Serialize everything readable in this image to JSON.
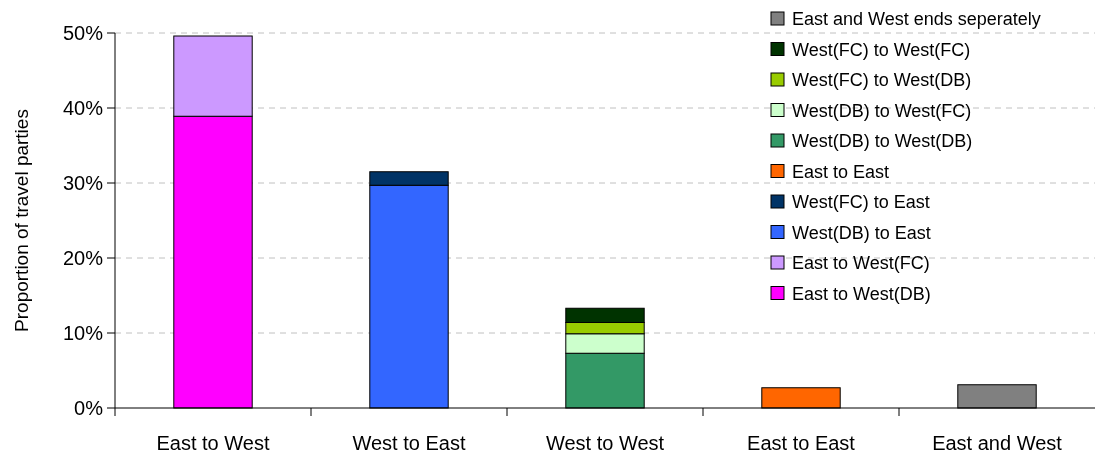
{
  "chart_data": {
    "type": "bar",
    "stacked": true,
    "ylabel": "Proportion of travel parties",
    "categories": [
      "East to West",
      "West to East",
      "West to West",
      "East to East",
      "East and West"
    ],
    "series": [
      {
        "name": "East to West(DB)",
        "color": "#ff00ff",
        "values": [
          38.9,
          null,
          null,
          null,
          null
        ]
      },
      {
        "name": "East to West(FC)",
        "color": "#cc99ff",
        "values": [
          10.7,
          null,
          null,
          null,
          null
        ]
      },
      {
        "name": "West(DB) to East",
        "color": "#3366ff",
        "values": [
          null,
          29.7,
          null,
          null,
          null
        ]
      },
      {
        "name": "West(FC) to East",
        "color": "#003366",
        "values": [
          null,
          1.8,
          null,
          null,
          null
        ]
      },
      {
        "name": "East to East",
        "color": "#ff6600",
        "values": [
          null,
          null,
          null,
          2.7,
          null
        ]
      },
      {
        "name": "West(DB) to West(DB)",
        "color": "#339966",
        "values": [
          null,
          null,
          7.3,
          null,
          null
        ]
      },
      {
        "name": "West(DB) to West(FC)",
        "color": "#ccffcc",
        "values": [
          null,
          null,
          2.6,
          null,
          null
        ]
      },
      {
        "name": "West(FC) to West(DB)",
        "color": "#99cc00",
        "values": [
          null,
          null,
          1.5,
          null,
          null
        ]
      },
      {
        "name": "West(FC) to West(FC)",
        "color": "#003300",
        "values": [
          null,
          null,
          1.9,
          null,
          null
        ]
      },
      {
        "name": "East and West ends seperately",
        "color": "#808080",
        "values": [
          null,
          null,
          null,
          null,
          3.1
        ]
      }
    ],
    "ylim": [
      0,
      50
    ],
    "yticks": [
      {
        "value": 0,
        "label": "0%"
      },
      {
        "value": 10,
        "label": "10%"
      },
      {
        "value": 20,
        "label": "20%"
      },
      {
        "value": 30,
        "label": "30%"
      },
      {
        "value": 40,
        "label": "40%"
      },
      {
        "value": 50,
        "label": "50%"
      }
    ],
    "grid": "y",
    "legend": "top right"
  }
}
